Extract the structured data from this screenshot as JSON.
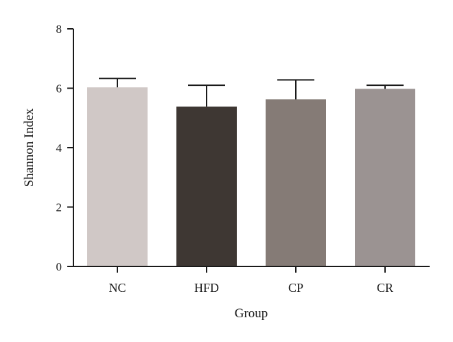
{
  "chart_data": {
    "type": "bar",
    "title": "",
    "xlabel": "Group",
    "ylabel": "Shannon Index",
    "ylim": [
      0,
      8
    ],
    "yticks": [
      0,
      2,
      4,
      6,
      8
    ],
    "yticks_labels": [
      "0",
      "2",
      "4",
      "6",
      "8"
    ],
    "grid": false,
    "legend": "none",
    "categories": [
      "NC",
      "HFD",
      "CP",
      "CR"
    ],
    "values": [
      6.03,
      5.38,
      5.63,
      5.98
    ],
    "error_upper": [
      0.3,
      0.72,
      0.65,
      0.12
    ],
    "colors": [
      "#d0c8c6",
      "#3e3733",
      "#857b76",
      "#9b9392"
    ],
    "axis_color": "#1a1a1a"
  }
}
